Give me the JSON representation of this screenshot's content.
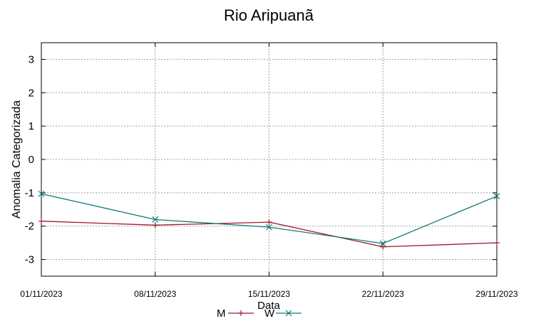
{
  "chart_data": {
    "type": "line",
    "title": "Rio Aripuanã",
    "xlabel": "Data",
    "ylabel": "Anomalia Categorizada",
    "categories": [
      "01/11/2023",
      "08/11/2023",
      "15/11/2023",
      "22/11/2023",
      "29/11/2023"
    ],
    "series": [
      {
        "name": "M",
        "values": [
          -1.85,
          -1.97,
          -1.88,
          -2.62,
          -2.5
        ],
        "color": "#a0182a",
        "marker": "plus"
      },
      {
        "name": "W",
        "values": [
          -1.03,
          -1.8,
          -2.03,
          -2.52,
          -1.1
        ],
        "color": "#137a78",
        "marker": "cross"
      }
    ],
    "yticks": [
      3,
      2,
      1,
      0,
      -1,
      -2,
      -3
    ],
    "ylim": [
      -3.5,
      3.5
    ],
    "grid": true,
    "legend_position": "bottom-center"
  }
}
